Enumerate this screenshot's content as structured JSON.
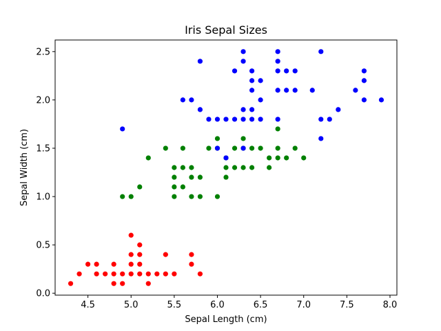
{
  "chart_data": {
    "type": "scatter",
    "title": "Iris Sepal Sizes",
    "xlabel": "Sepal Length (cm)",
    "ylabel": "Sepal Width (cm)",
    "xlim": [
      4.12,
      8.08
    ],
    "ylim": [
      -0.02,
      2.62
    ],
    "xticks": [
      4.5,
      5.0,
      5.5,
      6.0,
      6.5,
      7.0,
      7.5,
      8.0
    ],
    "xtick_labels": [
      "4.5",
      "5.0",
      "5.5",
      "6.0",
      "6.5",
      "7.0",
      "7.5",
      "8.0"
    ],
    "yticks": [
      0.0,
      0.5,
      1.0,
      1.5,
      2.0,
      2.5
    ],
    "ytick_labels": [
      "0.0",
      "0.5",
      "1.0",
      "1.5",
      "2.0",
      "2.5"
    ],
    "grid": false,
    "series": [
      {
        "color": "#ff0000",
        "points": [
          [
            4.3,
            0.1
          ],
          [
            4.4,
            0.2
          ],
          [
            4.5,
            0.3
          ],
          [
            4.6,
            0.3
          ],
          [
            4.6,
            0.2
          ],
          [
            4.7,
            0.2
          ],
          [
            4.8,
            0.3
          ],
          [
            4.8,
            0.2
          ],
          [
            4.8,
            0.1
          ],
          [
            4.9,
            0.2
          ],
          [
            4.9,
            0.1
          ],
          [
            5.0,
            0.6
          ],
          [
            5.0,
            0.4
          ],
          [
            5.0,
            0.3
          ],
          [
            5.0,
            0.2
          ],
          [
            5.1,
            0.5
          ],
          [
            5.1,
            0.4
          ],
          [
            5.1,
            0.3
          ],
          [
            5.1,
            0.2
          ],
          [
            5.2,
            0.2
          ],
          [
            5.2,
            0.1
          ],
          [
            5.3,
            0.2
          ],
          [
            5.4,
            0.4
          ],
          [
            5.4,
            0.2
          ],
          [
            5.5,
            0.2
          ],
          [
            5.7,
            0.4
          ],
          [
            5.7,
            0.3
          ],
          [
            5.8,
            0.2
          ]
        ]
      },
      {
        "color": "#008000",
        "points": [
          [
            4.9,
            1.0
          ],
          [
            5.0,
            1.0
          ],
          [
            5.1,
            1.1
          ],
          [
            5.2,
            1.4
          ],
          [
            5.4,
            1.5
          ],
          [
            5.5,
            1.3
          ],
          [
            5.5,
            1.2
          ],
          [
            5.5,
            1.1
          ],
          [
            5.5,
            1.0
          ],
          [
            5.6,
            1.5
          ],
          [
            5.6,
            1.3
          ],
          [
            5.6,
            1.1
          ],
          [
            5.7,
            1.3
          ],
          [
            5.7,
            1.2
          ],
          [
            5.7,
            1.0
          ],
          [
            5.8,
            1.2
          ],
          [
            5.8,
            1.0
          ],
          [
            5.9,
            1.5
          ],
          [
            6.0,
            1.6
          ],
          [
            6.0,
            1.5
          ],
          [
            6.0,
            1.0
          ],
          [
            6.1,
            1.4
          ],
          [
            6.1,
            1.3
          ],
          [
            6.1,
            1.2
          ],
          [
            6.2,
            1.5
          ],
          [
            6.2,
            1.3
          ],
          [
            6.3,
            1.6
          ],
          [
            6.3,
            1.5
          ],
          [
            6.3,
            1.3
          ],
          [
            6.4,
            1.5
          ],
          [
            6.4,
            1.3
          ],
          [
            6.5,
            1.5
          ],
          [
            6.6,
            1.4
          ],
          [
            6.6,
            1.3
          ],
          [
            6.7,
            1.7
          ],
          [
            6.7,
            1.5
          ],
          [
            6.7,
            1.4
          ],
          [
            6.8,
            1.4
          ],
          [
            6.9,
            1.5
          ],
          [
            7.0,
            1.4
          ]
        ]
      },
      {
        "color": "#0000ff",
        "points": [
          [
            4.9,
            1.7
          ],
          [
            5.6,
            2.0
          ],
          [
            5.7,
            2.0
          ],
          [
            5.8,
            2.4
          ],
          [
            5.8,
            1.9
          ],
          [
            5.9,
            1.8
          ],
          [
            6.0,
            1.8
          ],
          [
            6.0,
            1.5
          ],
          [
            6.1,
            1.8
          ],
          [
            6.1,
            1.4
          ],
          [
            6.2,
            2.3
          ],
          [
            6.2,
            1.8
          ],
          [
            6.3,
            2.5
          ],
          [
            6.3,
            2.4
          ],
          [
            6.3,
            1.9
          ],
          [
            6.3,
            1.8
          ],
          [
            6.3,
            1.5
          ],
          [
            6.4,
            2.3
          ],
          [
            6.4,
            2.2
          ],
          [
            6.4,
            2.1
          ],
          [
            6.4,
            1.9
          ],
          [
            6.4,
            1.8
          ],
          [
            6.5,
            2.2
          ],
          [
            6.5,
            2.0
          ],
          [
            6.5,
            1.8
          ],
          [
            6.7,
            2.5
          ],
          [
            6.7,
            2.4
          ],
          [
            6.7,
            2.3
          ],
          [
            6.7,
            2.1
          ],
          [
            6.7,
            1.8
          ],
          [
            6.8,
            2.3
          ],
          [
            6.8,
            2.1
          ],
          [
            6.9,
            2.3
          ],
          [
            6.9,
            2.1
          ],
          [
            7.1,
            2.1
          ],
          [
            7.2,
            2.5
          ],
          [
            7.2,
            1.8
          ],
          [
            7.2,
            1.6
          ],
          [
            7.3,
            1.8
          ],
          [
            7.4,
            1.9
          ],
          [
            7.6,
            2.1
          ],
          [
            7.7,
            2.3
          ],
          [
            7.7,
            2.2
          ],
          [
            7.7,
            2.0
          ],
          [
            7.9,
            2.0
          ]
        ]
      }
    ]
  }
}
